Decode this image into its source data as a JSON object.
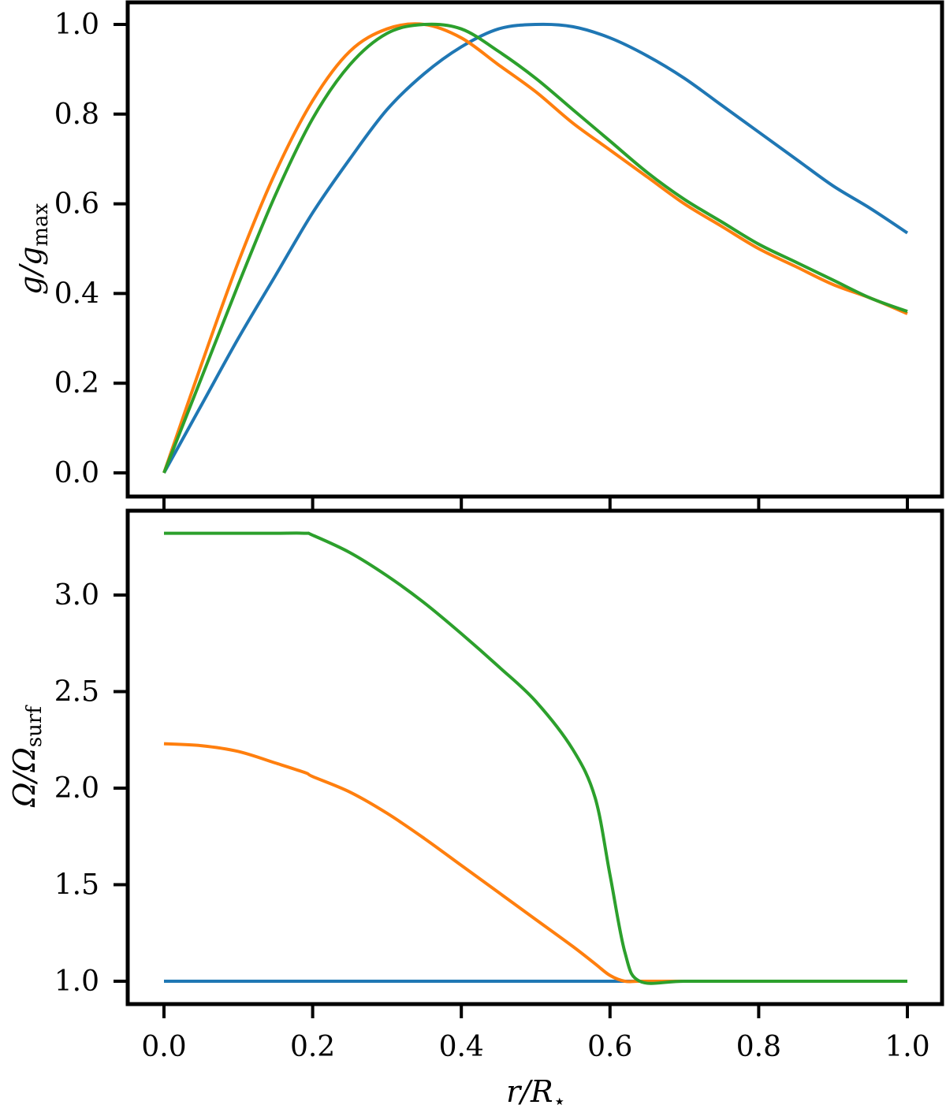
{
  "chart_data": [
    {
      "type": "line",
      "panel": "top",
      "title": "",
      "xlabel": "",
      "ylabel": "g/g_max",
      "xlim": [
        -0.05,
        1.05
      ],
      "ylim": [
        -0.05,
        1.05
      ],
      "xticks": [
        0.0,
        0.2,
        0.4,
        0.6,
        0.8,
        1.0
      ],
      "yticks": [
        0.0,
        0.2,
        0.4,
        0.6,
        0.8,
        1.0
      ],
      "ytick_labels": [
        "0.0",
        "0.2",
        "0.4",
        "0.6",
        "0.8",
        "1.0"
      ],
      "grid": false,
      "legend": null,
      "x": [
        0.0,
        0.05,
        0.1,
        0.15,
        0.2,
        0.25,
        0.3,
        0.35,
        0.4,
        0.45,
        0.5,
        0.55,
        0.6,
        0.65,
        0.7,
        0.75,
        0.8,
        0.85,
        0.9,
        0.95,
        1.0
      ],
      "series": [
        {
          "name": "blue",
          "color": "#1f77b4",
          "values": [
            0.0,
            0.15,
            0.3,
            0.44,
            0.58,
            0.7,
            0.81,
            0.89,
            0.95,
            0.99,
            1.0,
            0.995,
            0.97,
            0.93,
            0.88,
            0.82,
            0.76,
            0.7,
            0.64,
            0.59,
            0.535
          ]
        },
        {
          "name": "orange",
          "color": "#ff7f0e",
          "values": [
            0.0,
            0.24,
            0.47,
            0.67,
            0.83,
            0.94,
            0.99,
            1.0,
            0.97,
            0.91,
            0.85,
            0.78,
            0.72,
            0.66,
            0.6,
            0.55,
            0.5,
            0.46,
            0.42,
            0.39,
            0.355
          ]
        },
        {
          "name": "green",
          "color": "#2ca02c",
          "values": [
            0.0,
            0.21,
            0.42,
            0.62,
            0.79,
            0.91,
            0.98,
            1.0,
            0.99,
            0.94,
            0.88,
            0.81,
            0.74,
            0.67,
            0.61,
            0.56,
            0.51,
            0.47,
            0.43,
            0.39,
            0.36
          ]
        }
      ]
    },
    {
      "type": "line",
      "panel": "bottom",
      "title": "",
      "xlabel": "r/R_star",
      "ylabel": "Omega/Omega_surf",
      "xlim": [
        -0.05,
        1.05
      ],
      "ylim": [
        0.88,
        3.44
      ],
      "xticks": [
        0.0,
        0.2,
        0.4,
        0.6,
        0.8,
        1.0
      ],
      "xtick_labels": [
        "0.0",
        "0.2",
        "0.4",
        "0.6",
        "0.8",
        "1.0"
      ],
      "yticks": [
        1.0,
        1.5,
        2.0,
        2.5,
        3.0
      ],
      "ytick_labels": [
        "1.0",
        "1.5",
        "2.0",
        "2.5",
        "3.0"
      ],
      "grid": false,
      "legend": null,
      "x": [
        0.0,
        0.05,
        0.1,
        0.15,
        0.19,
        0.2,
        0.25,
        0.3,
        0.35,
        0.4,
        0.45,
        0.5,
        0.55,
        0.58,
        0.6,
        0.62,
        0.64,
        0.7,
        0.8,
        0.9,
        1.0
      ],
      "series": [
        {
          "name": "blue",
          "color": "#1f77b4",
          "values": [
            1.0,
            1.0,
            1.0,
            1.0,
            1.0,
            1.0,
            1.0,
            1.0,
            1.0,
            1.0,
            1.0,
            1.0,
            1.0,
            1.0,
            1.0,
            1.0,
            1.0,
            1.0,
            1.0,
            1.0,
            1.0
          ]
        },
        {
          "name": "orange",
          "color": "#ff7f0e",
          "values": [
            2.23,
            2.22,
            2.19,
            2.13,
            2.08,
            2.06,
            1.98,
            1.87,
            1.74,
            1.6,
            1.46,
            1.32,
            1.18,
            1.09,
            1.03,
            1.0,
            1.0,
            1.0,
            1.0,
            1.0,
            1.0
          ]
        },
        {
          "name": "green",
          "color": "#2ca02c",
          "values": [
            3.32,
            3.32,
            3.32,
            3.32,
            3.32,
            3.31,
            3.22,
            3.1,
            2.96,
            2.8,
            2.63,
            2.45,
            2.2,
            1.95,
            1.55,
            1.15,
            1.0,
            1.0,
            1.0,
            1.0,
            1.0
          ]
        }
      ]
    }
  ],
  "top": {
    "ylabel_main": "g/g",
    "ylabel_sub": "max",
    "yticks": [
      "0.0",
      "0.2",
      "0.4",
      "0.6",
      "0.8",
      "1.0"
    ]
  },
  "bottom": {
    "ylabel_main": "Ω/Ω",
    "ylabel_sub": "surf",
    "yticks": [
      "1.0",
      "1.5",
      "2.0",
      "2.5",
      "3.0"
    ],
    "xticks": [
      "0.0",
      "0.2",
      "0.4",
      "0.6",
      "0.8",
      "1.0"
    ],
    "xlabel_main": "r/R",
    "xlabel_sub": "⋆"
  }
}
